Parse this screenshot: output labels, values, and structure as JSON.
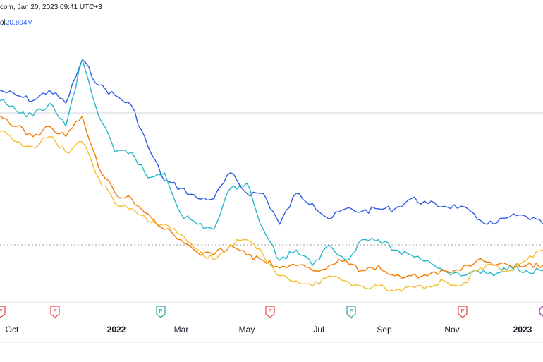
{
  "header": {
    "source_line": "com, Jan 20, 2023 09:41 UTC+3",
    "volume_label": "ol",
    "volume_value": "20.804M"
  },
  "colors": {
    "blue": "#2d5be3",
    "teal": "#22b8c8",
    "orange": "#f57c00",
    "yellow": "#f7bd2e",
    "earnings_red": "#e8434e",
    "earnings_green": "#26a69a",
    "dividend_purple": "#ab47bc",
    "axis_text": "#131722",
    "grid": "#e0e3eb"
  },
  "chart_data": {
    "type": "line",
    "x_axis": {
      "ticks": [
        "Oct",
        "2022",
        "Mar",
        "May",
        "Jul",
        "Sep",
        "Nov",
        "2023"
      ],
      "bold_ticks": [
        "2022",
        "2023"
      ]
    },
    "event_markers": [
      {
        "label": "E",
        "type": "earnings",
        "color": "earnings_red"
      },
      {
        "label": "E",
        "type": "earnings",
        "color": "earnings_red"
      },
      {
        "label": "E",
        "type": "earnings",
        "color": "earnings_green"
      },
      {
        "label": "E",
        "type": "earnings",
        "color": "earnings_red"
      },
      {
        "label": "E",
        "type": "earnings",
        "color": "earnings_green"
      },
      {
        "label": "E",
        "type": "earnings",
        "color": "earnings_red"
      },
      {
        "label": "",
        "type": "dividend",
        "color": "dividend_purple"
      }
    ],
    "grid": false,
    "legend": "none",
    "series": [
      {
        "color": "blue",
        "values": [
          0.8,
          0.78,
          0.76,
          0.8,
          0.75,
          0.92,
          0.82,
          0.78,
          0.74,
          0.58,
          0.45,
          0.42,
          0.38,
          0.38,
          0.48,
          0.4,
          0.4,
          0.28,
          0.4,
          0.36,
          0.3,
          0.34,
          0.33,
          0.34,
          0.34,
          0.38,
          0.36,
          0.35,
          0.35,
          0.3,
          0.28,
          0.31,
          0.31,
          0.28
        ]
      },
      {
        "color": "teal",
        "values": [
          0.76,
          0.72,
          0.7,
          0.75,
          0.66,
          0.92,
          0.7,
          0.56,
          0.56,
          0.46,
          0.48,
          0.32,
          0.28,
          0.26,
          0.42,
          0.44,
          0.26,
          0.14,
          0.18,
          0.12,
          0.2,
          0.14,
          0.22,
          0.22,
          0.18,
          0.16,
          0.14,
          0.1,
          0.08,
          0.1,
          0.08,
          0.12,
          0.1,
          0.1
        ]
      },
      {
        "color": "orange",
        "values": [
          0.7,
          0.66,
          0.62,
          0.66,
          0.62,
          0.7,
          0.5,
          0.4,
          0.38,
          0.32,
          0.26,
          0.22,
          0.17,
          0.16,
          0.2,
          0.16,
          0.14,
          0.11,
          0.12,
          0.1,
          0.12,
          0.14,
          0.1,
          0.12,
          0.08,
          0.08,
          0.08,
          0.1,
          0.1,
          0.14,
          0.12,
          0.12,
          0.12,
          0.12
        ]
      },
      {
        "color": "yellow",
        "values": [
          0.64,
          0.6,
          0.58,
          0.62,
          0.56,
          0.6,
          0.46,
          0.36,
          0.34,
          0.29,
          0.28,
          0.24,
          0.18,
          0.14,
          0.2,
          0.22,
          0.16,
          0.08,
          0.06,
          0.04,
          0.08,
          0.06,
          0.04,
          0.04,
          0.02,
          0.04,
          0.04,
          0.06,
          0.04,
          0.1,
          0.12,
          0.1,
          0.14,
          0.18
        ]
      }
    ]
  }
}
